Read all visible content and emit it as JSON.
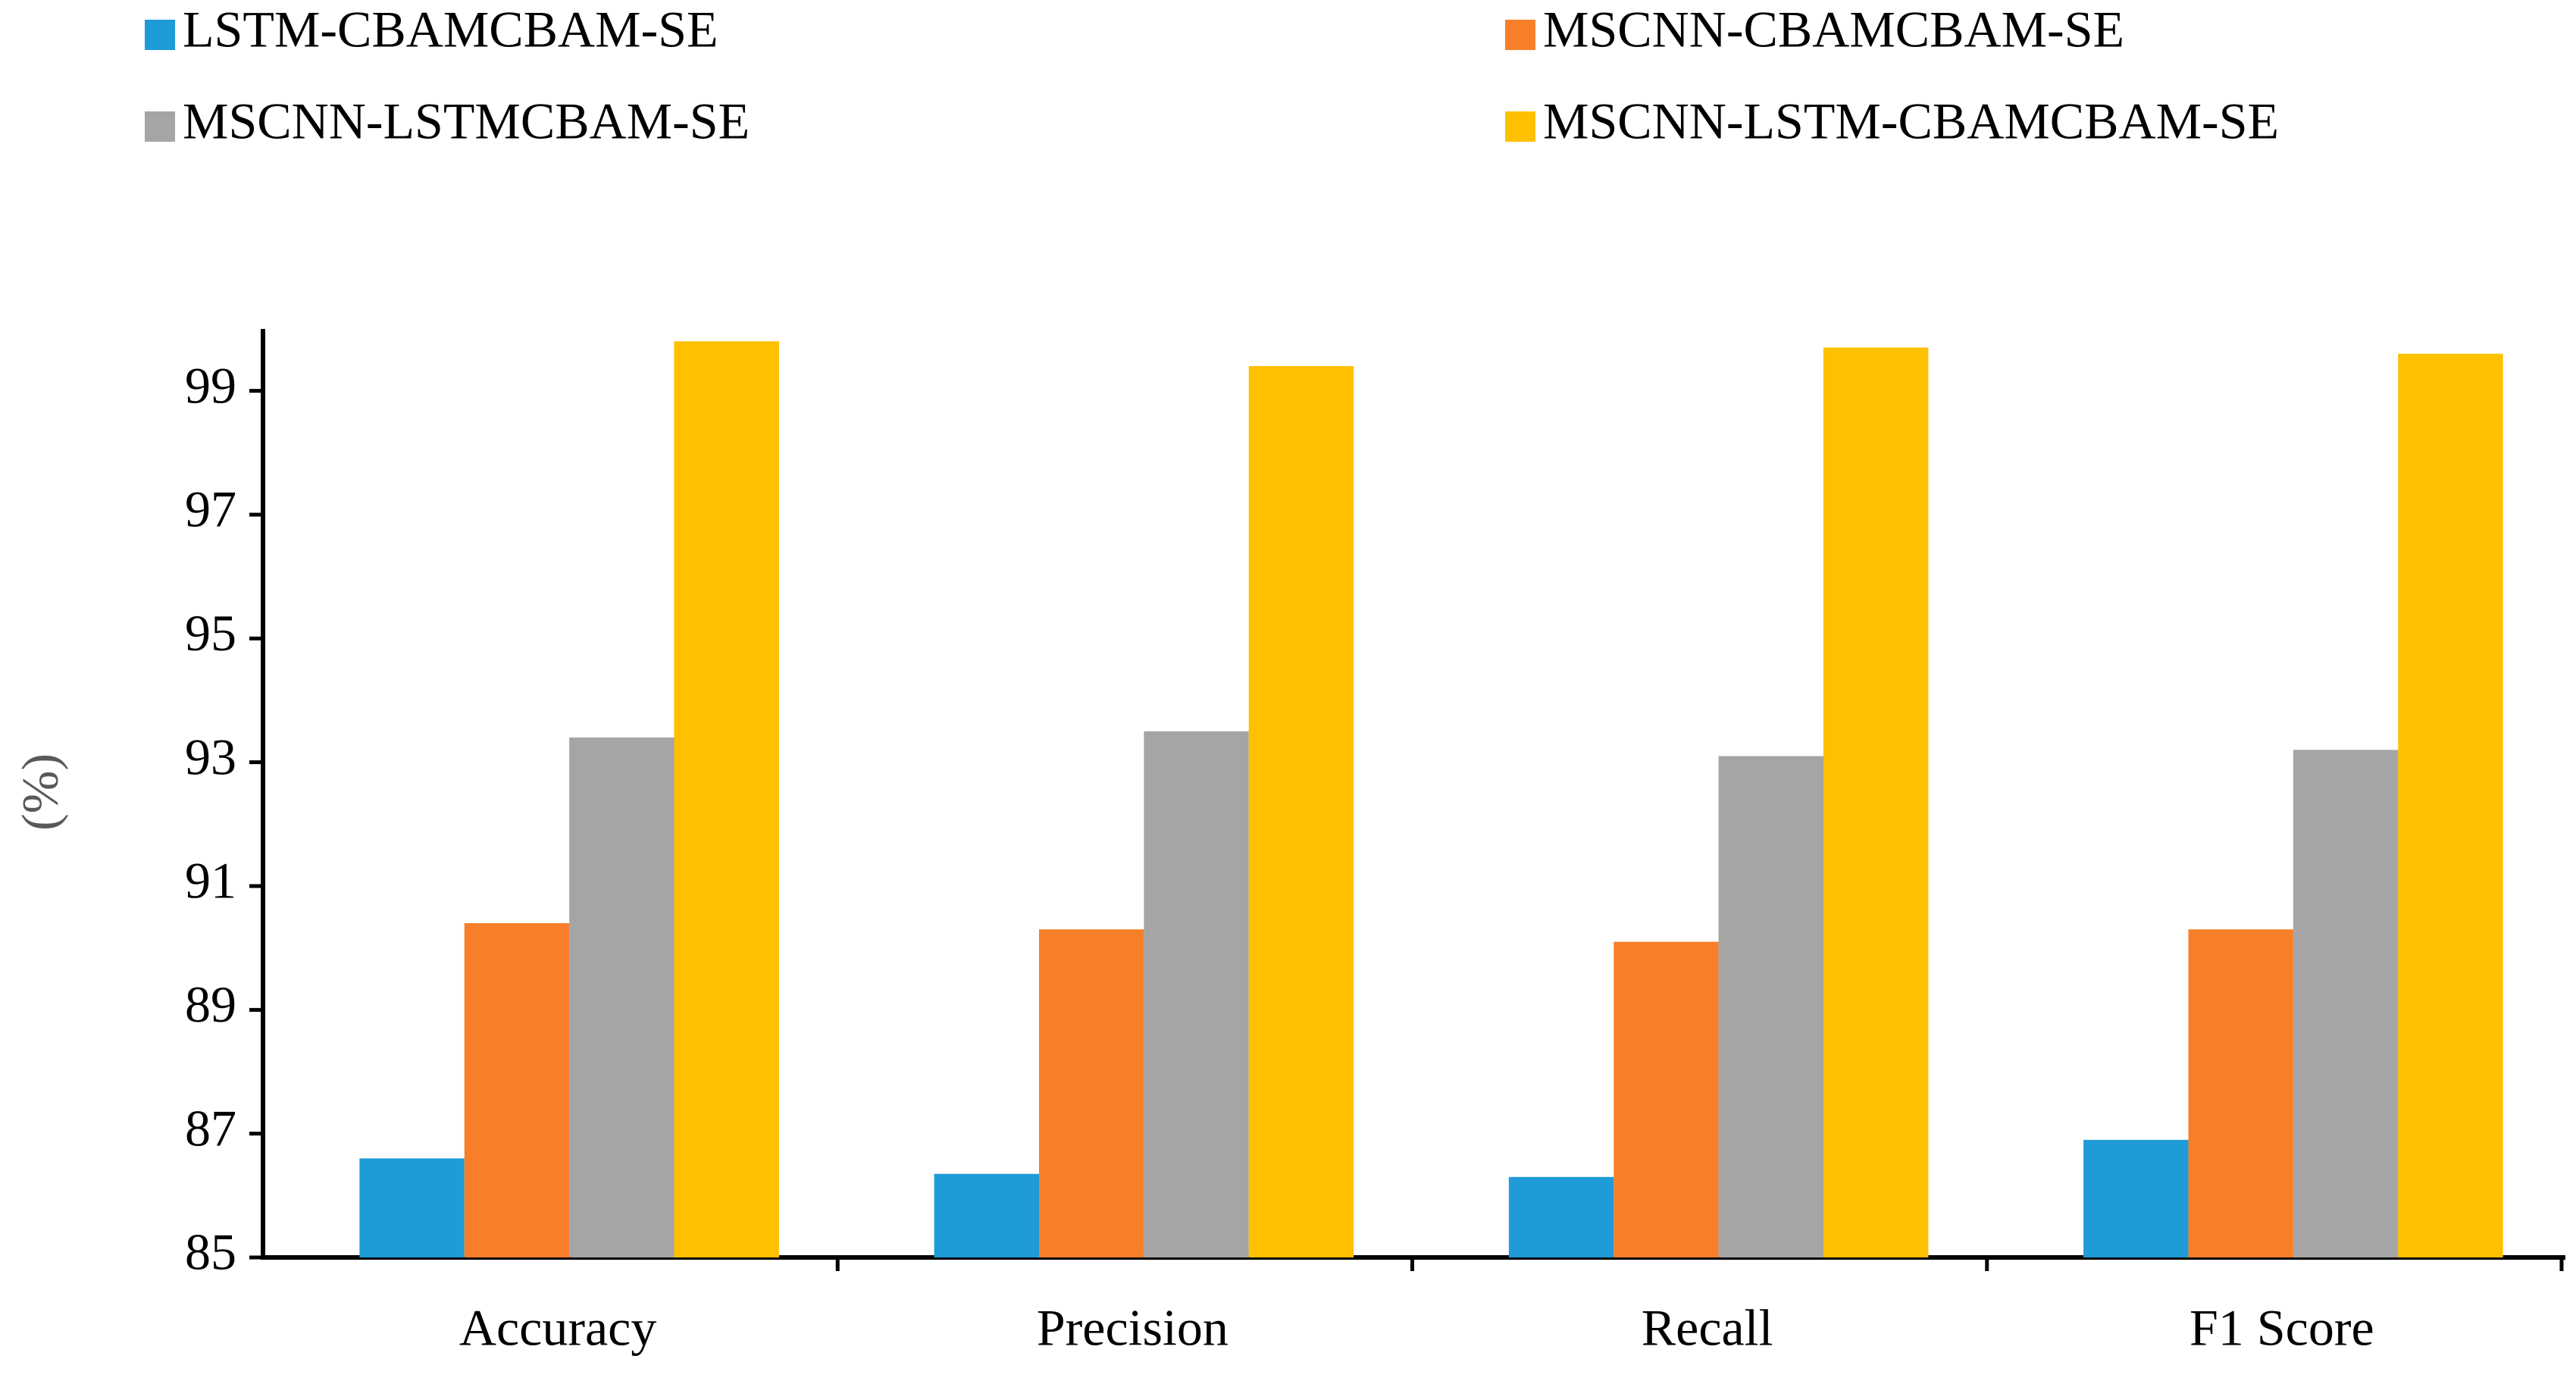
{
  "chart_data": {
    "type": "bar",
    "y_label": "(%)",
    "categories": [
      "Accuracy",
      "Precision",
      "Recall",
      "F1 Score"
    ],
    "series": [
      {
        "name": "LSTM-CBAMCBAM-SE",
        "color": "#1f9bd7",
        "values": [
          86.6,
          86.35,
          86.3,
          86.9
        ]
      },
      {
        "name": "MSCNN-CBAMCBAM-SE",
        "color": "#f87f2a",
        "values": [
          90.4,
          90.3,
          90.1,
          90.3
        ]
      },
      {
        "name": "MSCNN-LSTMCBAM-SE",
        "color": "#a5a5a5",
        "values": [
          93.4,
          93.5,
          93.1,
          93.2
        ]
      },
      {
        "name": "MSCNN-LSTM-CBAMCBAM-SE",
        "color": "#ffc000",
        "values": [
          99.8,
          99.4,
          99.7,
          99.6
        ]
      }
    ],
    "ylim": [
      85,
      100
    ],
    "yticks": [
      85,
      87,
      89,
      91,
      93,
      95,
      97,
      99
    ],
    "grid": false
  }
}
